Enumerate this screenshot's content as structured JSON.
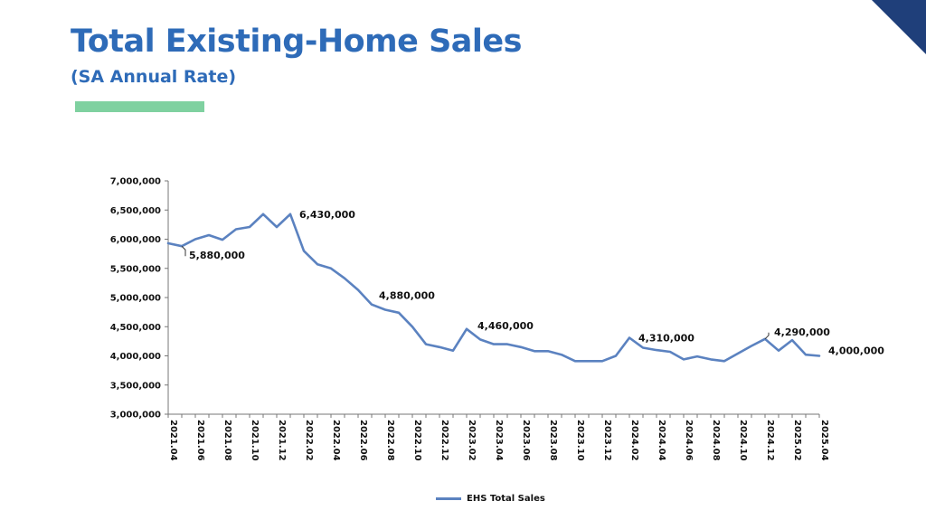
{
  "header": {
    "title": "Total Existing-Home Sales",
    "subtitle": "(SA Annual Rate)"
  },
  "colors": {
    "title": "#2e6bb8",
    "accent_bar": "#7fd1a0",
    "corner": "#1f3f7a",
    "line": "#5b82c0",
    "axis": "#777777"
  },
  "chart_data": {
    "type": "line",
    "title": "",
    "xlabel": "",
    "ylabel": "",
    "ylim": [
      3000000,
      7000000
    ],
    "yticks": [
      3000000,
      3500000,
      4000000,
      4500000,
      5000000,
      5500000,
      6000000,
      6500000,
      7000000
    ],
    "ytick_labels": [
      "3,000,000",
      "3,500,000",
      "4,000,000",
      "4,500,000",
      "5,000,000",
      "5,500,000",
      "6,000,000",
      "6,500,000",
      "7,000,000"
    ],
    "x": [
      "2021.04",
      "2021.05",
      "2021.06",
      "2021.07",
      "2021.08",
      "2021.09",
      "2021.10",
      "2021.11",
      "2021.12",
      "2022.01",
      "2022.02",
      "2022.03",
      "2022.04",
      "2022.05",
      "2022.06",
      "2022.07",
      "2022.08",
      "2022.09",
      "2022.10",
      "2022.11",
      "2022.12",
      "2023.01",
      "2023.02",
      "2023.03",
      "2023.04",
      "2023.05",
      "2023.06",
      "2023.07",
      "2023.08",
      "2023.09",
      "2023.10",
      "2023.11",
      "2023.12",
      "2024.01",
      "2024.02",
      "2024.03",
      "2024.04",
      "2024.05",
      "2024.06",
      "2024.07",
      "2024.08",
      "2024.09",
      "2024.10",
      "2024.11",
      "2024.12",
      "2025.01",
      "2025.02",
      "2025.03",
      "2025.04"
    ],
    "xtick_labels": [
      "2021.04",
      "2021.06",
      "2021.08",
      "2021.10",
      "2021.12",
      "2022.02",
      "2022.04",
      "2022.06",
      "2022.08",
      "2022.10",
      "2022.12",
      "2023.02",
      "2023.04",
      "2023.06",
      "2023.08",
      "2023.10",
      "2023.12",
      "2024.02",
      "2024.04",
      "2024.06",
      "2024.08",
      "2024.10",
      "2024.12",
      "2025.02",
      "2025.04"
    ],
    "series": [
      {
        "name": "EHS Total Sales",
        "values": [
          5930000,
          5880000,
          6000000,
          6070000,
          5990000,
          6170000,
          6210000,
          6430000,
          6210000,
          6430000,
          5800000,
          5570000,
          5500000,
          5330000,
          5130000,
          4880000,
          4790000,
          4740000,
          4500000,
          4200000,
          4150000,
          4090000,
          4460000,
          4280000,
          4200000,
          4200000,
          4150000,
          4080000,
          4080000,
          4020000,
          3910000,
          3910000,
          3910000,
          4000000,
          4310000,
          4140000,
          4100000,
          4070000,
          3940000,
          3990000,
          3940000,
          3910000,
          4040000,
          4170000,
          4290000,
          4090000,
          4270000,
          4020000,
          4000000
        ]
      }
    ],
    "data_labels": [
      {
        "index": 1,
        "text": "5,880,000"
      },
      {
        "index": 9,
        "text": "6,430,000"
      },
      {
        "index": 15,
        "text": "4,880,000"
      },
      {
        "index": 22,
        "text": "4,460,000"
      },
      {
        "index": 34,
        "text": "4,310,000"
      },
      {
        "index": 44,
        "text": "4,290,000"
      },
      {
        "index": 48,
        "text": "4,000,000"
      }
    ],
    "legend_position": "bottom",
    "grid": false
  }
}
